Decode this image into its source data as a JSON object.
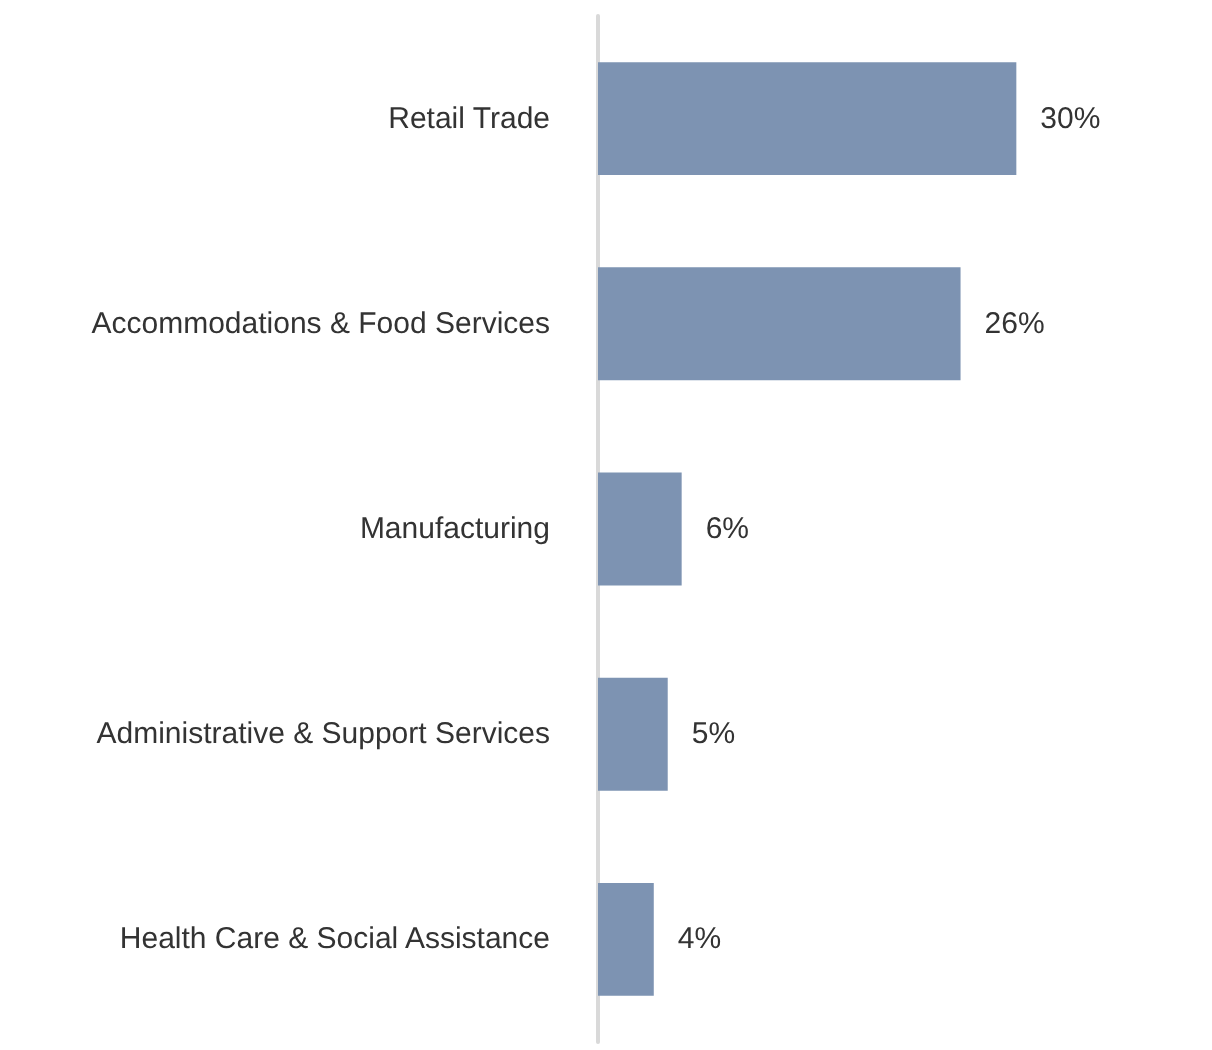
{
  "chart_data": {
    "type": "bar",
    "orientation": "horizontal",
    "categories": [
      "Retail Trade",
      "Accommodations & Food Services",
      "Manufacturing",
      "Administrative & Support Services",
      "Health Care & Social Assistance"
    ],
    "values": [
      30,
      26,
      6,
      5,
      4
    ],
    "value_labels": [
      "30%",
      "26%",
      "6%",
      "5%",
      "4%"
    ],
    "color": "#7d93b2"
  }
}
